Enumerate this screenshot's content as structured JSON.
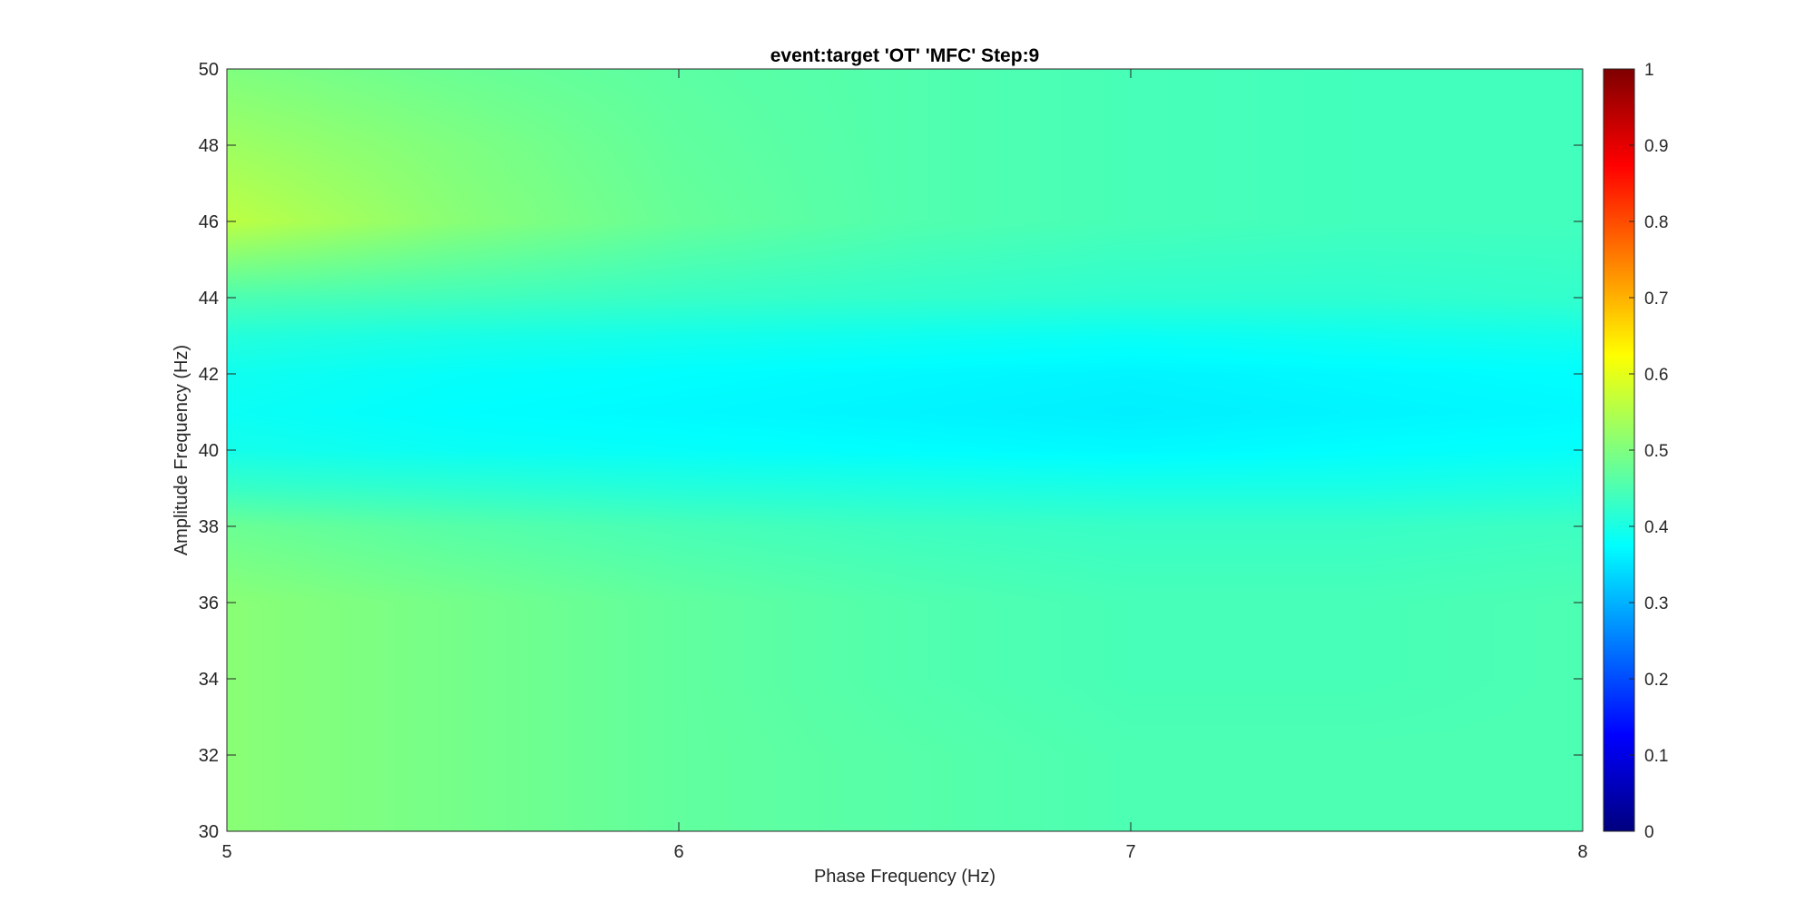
{
  "chart_data": {
    "type": "heatmap",
    "title": "event:target 'OT'  'MFC' Step:9",
    "xlabel": "Phase Frequency (Hz)",
    "ylabel": "Amplitude Frequency (Hz)",
    "xlim": [
      5,
      8
    ],
    "ylim": [
      30,
      50
    ],
    "x_ticks": [
      "5",
      "6",
      "7",
      "8"
    ],
    "y_ticks": [
      "30",
      "32",
      "34",
      "36",
      "38",
      "40",
      "42",
      "44",
      "46",
      "48",
      "50"
    ],
    "colormap": "jet",
    "clim": [
      0,
      1
    ],
    "colorbar_ticks": [
      "0",
      "0.1",
      "0.2",
      "0.3",
      "0.4",
      "0.5",
      "0.6",
      "0.7",
      "0.8",
      "0.9",
      "1"
    ],
    "x": [
      5,
      5.5,
      6,
      6.5,
      7,
      7.5,
      8
    ],
    "y": [
      30,
      32,
      34,
      36,
      38,
      39,
      40,
      41,
      42,
      43,
      44,
      46,
      48,
      50
    ],
    "z": [
      [
        0.51,
        0.49,
        0.47,
        0.46,
        0.45,
        0.45,
        0.45
      ],
      [
        0.51,
        0.49,
        0.47,
        0.46,
        0.45,
        0.45,
        0.45
      ],
      [
        0.51,
        0.49,
        0.47,
        0.455,
        0.445,
        0.445,
        0.45
      ],
      [
        0.51,
        0.49,
        0.47,
        0.455,
        0.445,
        0.445,
        0.45
      ],
      [
        0.48,
        0.46,
        0.445,
        0.435,
        0.43,
        0.43,
        0.435
      ],
      [
        0.43,
        0.42,
        0.41,
        0.405,
        0.4,
        0.4,
        0.405
      ],
      [
        0.395,
        0.385,
        0.38,
        0.375,
        0.37,
        0.375,
        0.38
      ],
      [
        0.385,
        0.375,
        0.37,
        0.365,
        0.36,
        0.365,
        0.37
      ],
      [
        0.39,
        0.38,
        0.375,
        0.37,
        0.365,
        0.37,
        0.375
      ],
      [
        0.41,
        0.4,
        0.395,
        0.39,
        0.385,
        0.39,
        0.395
      ],
      [
        0.45,
        0.44,
        0.43,
        0.425,
        0.42,
        0.42,
        0.425
      ],
      [
        0.56,
        0.51,
        0.475,
        0.455,
        0.445,
        0.44,
        0.44
      ],
      [
        0.53,
        0.5,
        0.47,
        0.455,
        0.445,
        0.44,
        0.44
      ],
      [
        0.5,
        0.48,
        0.465,
        0.455,
        0.445,
        0.44,
        0.44
      ]
    ]
  }
}
